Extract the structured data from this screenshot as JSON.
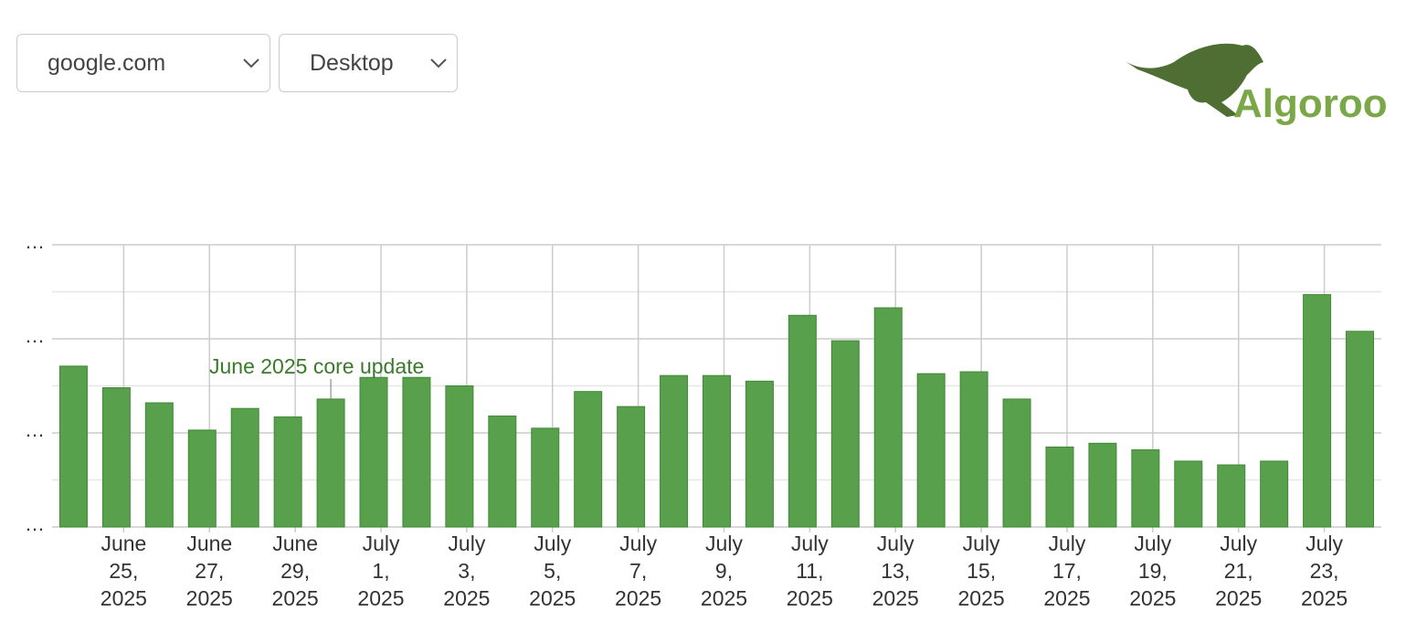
{
  "controls": {
    "site": "google.com",
    "device": "Desktop"
  },
  "logo": "Algoroo",
  "chart_data": {
    "type": "bar",
    "annotation": "June 2025 core update",
    "categories": [
      null,
      "June 25, 2025",
      null,
      "June 27, 2025",
      null,
      "June 29, 2025",
      null,
      "July 1, 2025",
      null,
      "July 3, 2025",
      null,
      "July 5, 2025",
      null,
      "July 7, 2025",
      null,
      "July 9, 2025",
      null,
      "July 11, 2025",
      null,
      "July 13, 2025",
      null,
      "July 15, 2025",
      null,
      "July 17, 2025",
      null,
      "July 19, 2025",
      null,
      "July 21, 2025",
      null,
      "July 23, 2025",
      null
    ],
    "values": [
      1.71,
      1.48,
      1.32,
      1.03,
      1.26,
      1.17,
      1.36,
      1.59,
      1.59,
      1.5,
      1.18,
      1.05,
      1.44,
      1.28,
      1.61,
      1.61,
      1.55,
      2.25,
      1.98,
      2.33,
      1.63,
      1.65,
      1.36,
      0.85,
      0.89,
      0.82,
      0.7,
      0.66,
      0.7,
      2.47,
      2.08
    ],
    "color": "#58a04c",
    "ylim": [
      0,
      3
    ],
    "yticks": [
      {
        "value": 0,
        "label": "…"
      },
      {
        "value": 1,
        "label": "…"
      },
      {
        "value": 2,
        "label": "…"
      },
      {
        "value": 3,
        "label": "…"
      }
    ],
    "minor_yticks": [
      0.5,
      1.5,
      2.5
    ],
    "grid": true
  }
}
